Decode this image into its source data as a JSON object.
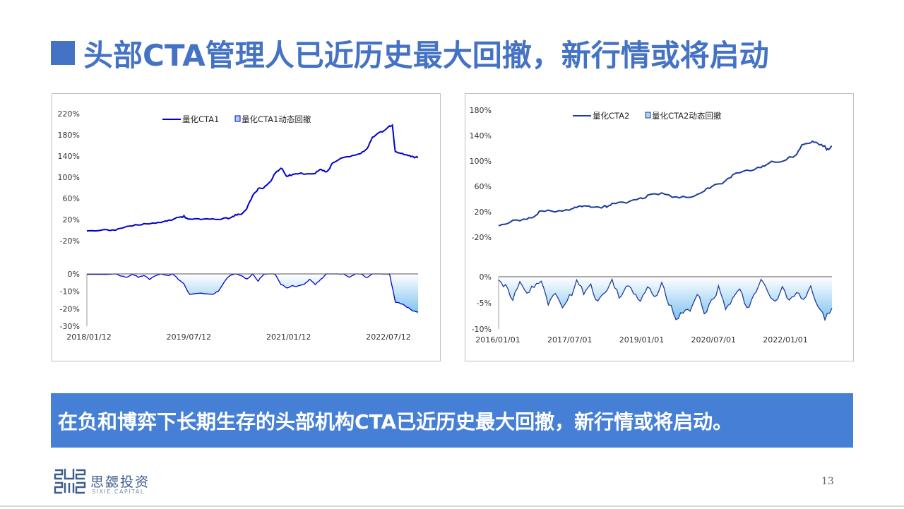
{
  "slide": {
    "title": "头部CTA管理人已近历史最大回撤，新行情或将启动",
    "conclusion": "在负和博弈下长期生存的头部机构CTA已近历史最大回撤，新行情或将启动。",
    "page_number": "13",
    "accent_color": "#4472C4",
    "banner_color": "#4680D6"
  },
  "logo": {
    "name_cn": "思勰投资",
    "name_en": "SIXIE CAPITAL",
    "icon": "sixie-logo-icon"
  },
  "chart_data": [
    {
      "type": "line",
      "series_name": "量化CTA1",
      "drawdown_name": "量化CTA1动态回撤",
      "line_color": "#0000CC",
      "x_ticks": [
        "2018/01/12",
        "2019/07/12",
        "2021/01/12",
        "2022/07/12"
      ],
      "y_ticks": [
        "220%",
        "180%",
        "140%",
        "100%",
        "60%",
        "20%",
        "-20%"
      ],
      "ylim": [
        -20,
        220
      ],
      "dd_ticks": [
        "0%",
        "-10%",
        "-20%",
        "-30%"
      ],
      "dd_lim": [
        -30,
        0
      ],
      "x_range": [
        0,
        58
      ],
      "nav_points": [
        [
          0,
          0
        ],
        [
          3,
          0
        ],
        [
          5,
          1
        ],
        [
          7,
          7
        ],
        [
          9,
          10
        ],
        [
          11,
          12
        ],
        [
          13,
          14
        ],
        [
          14,
          18
        ],
        [
          15,
          20
        ],
        [
          16,
          24
        ],
        [
          17,
          26
        ],
        [
          18,
          20
        ],
        [
          20,
          21
        ],
        [
          22,
          20
        ],
        [
          24,
          22
        ],
        [
          25,
          23
        ],
        [
          26,
          28
        ],
        [
          27,
          30
        ],
        [
          28,
          40
        ],
        [
          29,
          65
        ],
        [
          30,
          78
        ],
        [
          31,
          80
        ],
        [
          32,
          90
        ],
        [
          33,
          108
        ],
        [
          34,
          118
        ],
        [
          35,
          102
        ],
        [
          36,
          105
        ],
        [
          38,
          107
        ],
        [
          40,
          108
        ],
        [
          41,
          115
        ],
        [
          42,
          109
        ],
        [
          43,
          126
        ],
        [
          45,
          138
        ],
        [
          47,
          142
        ],
        [
          48,
          146
        ],
        [
          49,
          153
        ],
        [
          50,
          174
        ],
        [
          51,
          182
        ],
        [
          52,
          188
        ],
        [
          53,
          196
        ],
        [
          53.5,
          198
        ],
        [
          54,
          147
        ],
        [
          55,
          145
        ],
        [
          56,
          143
        ],
        [
          57,
          139
        ],
        [
          57.5,
          137
        ],
        [
          58,
          138
        ]
      ],
      "dd_points": [
        [
          0,
          0
        ],
        [
          5,
          0
        ],
        [
          6,
          -1
        ],
        [
          7,
          -2
        ],
        [
          8,
          0
        ],
        [
          9,
          -2
        ],
        [
          10,
          -1
        ],
        [
          11,
          -3
        ],
        [
          12,
          -1
        ],
        [
          13,
          0
        ],
        [
          14,
          -1
        ],
        [
          15,
          0
        ],
        [
          16,
          -3
        ],
        [
          17,
          -6
        ],
        [
          18,
          -12
        ],
        [
          20,
          -11
        ],
        [
          22,
          -12
        ],
        [
          23,
          -10
        ],
        [
          24,
          -5
        ],
        [
          25,
          -1
        ],
        [
          26,
          0
        ],
        [
          27,
          -1
        ],
        [
          28,
          -3
        ],
        [
          29,
          0
        ],
        [
          30,
          -4
        ],
        [
          31,
          0
        ],
        [
          32,
          0
        ],
        [
          33,
          0
        ],
        [
          34,
          -6
        ],
        [
          35,
          -8
        ],
        [
          36,
          -7
        ],
        [
          37,
          -7
        ],
        [
          38,
          -6
        ],
        [
          39,
          -3
        ],
        [
          40,
          -6
        ],
        [
          41,
          -3
        ],
        [
          42,
          0
        ],
        [
          43,
          0
        ],
        [
          44,
          0
        ],
        [
          45,
          0
        ],
        [
          46,
          -2
        ],
        [
          47,
          0
        ],
        [
          48,
          0
        ],
        [
          49,
          -2
        ],
        [
          50,
          0
        ],
        [
          51,
          0
        ],
        [
          52,
          0
        ],
        [
          53,
          0
        ],
        [
          54,
          -16
        ],
        [
          55,
          -17
        ],
        [
          56,
          -19
        ],
        [
          57,
          -21
        ],
        [
          58,
          -22
        ]
      ]
    },
    {
      "type": "line",
      "series_name": "量化CTA2",
      "drawdown_name": "量化CTA2动态回撤",
      "line_color": "#1F3D99",
      "x_ticks": [
        "2016/01/01",
        "2017/07/01",
        "2019/01/01",
        "2020/07/01",
        "2022/01/01"
      ],
      "y_ticks": [
        "180%",
        "140%",
        "100%",
        "60%",
        "20%",
        "-20%"
      ],
      "ylim": [
        -20,
        180
      ],
      "dd_ticks": [
        "0%",
        "-5%",
        "-10%"
      ],
      "dd_lim": [
        -10,
        0
      ],
      "x_range": [
        0,
        47
      ],
      "nav_points": [
        [
          0,
          0
        ],
        [
          2,
          5
        ],
        [
          4,
          10
        ],
        [
          5,
          12
        ],
        [
          6,
          22
        ],
        [
          8,
          20
        ],
        [
          10,
          22
        ],
        [
          11,
          28
        ],
        [
          12,
          30
        ],
        [
          13,
          27
        ],
        [
          15,
          28
        ],
        [
          16,
          32
        ],
        [
          18,
          35
        ],
        [
          20,
          40
        ],
        [
          21,
          45
        ],
        [
          23,
          50
        ],
        [
          25,
          42
        ],
        [
          27,
          43
        ],
        [
          29,
          52
        ],
        [
          30,
          60
        ],
        [
          32,
          68
        ],
        [
          33,
          78
        ],
        [
          35,
          85
        ],
        [
          37,
          90
        ],
        [
          38,
          97
        ],
        [
          40,
          100
        ],
        [
          42,
          110
        ],
        [
          43,
          128
        ],
        [
          44,
          130
        ],
        [
          45,
          128
        ],
        [
          46,
          122
        ],
        [
          46.5,
          117
        ],
        [
          47,
          123
        ]
      ],
      "dd_points": [
        [
          0,
          0
        ],
        [
          1,
          -2
        ],
        [
          2,
          -4
        ],
        [
          3,
          -1
        ],
        [
          4,
          -3
        ],
        [
          5,
          -2
        ],
        [
          6,
          -1
        ],
        [
          7,
          -5
        ],
        [
          8,
          -3
        ],
        [
          9,
          -6
        ],
        [
          10,
          -4
        ],
        [
          11,
          -1
        ],
        [
          12,
          -3
        ],
        [
          13,
          -2
        ],
        [
          14,
          -5
        ],
        [
          15,
          -3
        ],
        [
          16,
          -1
        ],
        [
          17,
          -4
        ],
        [
          18,
          -2
        ],
        [
          19,
          -3
        ],
        [
          20,
          -5
        ],
        [
          21,
          -2
        ],
        [
          22,
          -4
        ],
        [
          23,
          -1
        ],
        [
          24,
          -5
        ],
        [
          25,
          -8
        ],
        [
          26,
          -7
        ],
        [
          27,
          -6
        ],
        [
          28,
          -3
        ],
        [
          29,
          -7
        ],
        [
          30,
          -5
        ],
        [
          31,
          -2
        ],
        [
          32,
          -6
        ],
        [
          33,
          -4
        ],
        [
          34,
          -2
        ],
        [
          35,
          -6
        ],
        [
          36,
          -4
        ],
        [
          37,
          -1
        ],
        [
          38,
          -3
        ],
        [
          39,
          -5
        ],
        [
          40,
          -2
        ],
        [
          41,
          -5
        ],
        [
          42,
          -3
        ],
        [
          43,
          -4
        ],
        [
          44,
          -2
        ],
        [
          45,
          -6
        ],
        [
          46,
          -8
        ],
        [
          47,
          -6
        ]
      ]
    }
  ]
}
